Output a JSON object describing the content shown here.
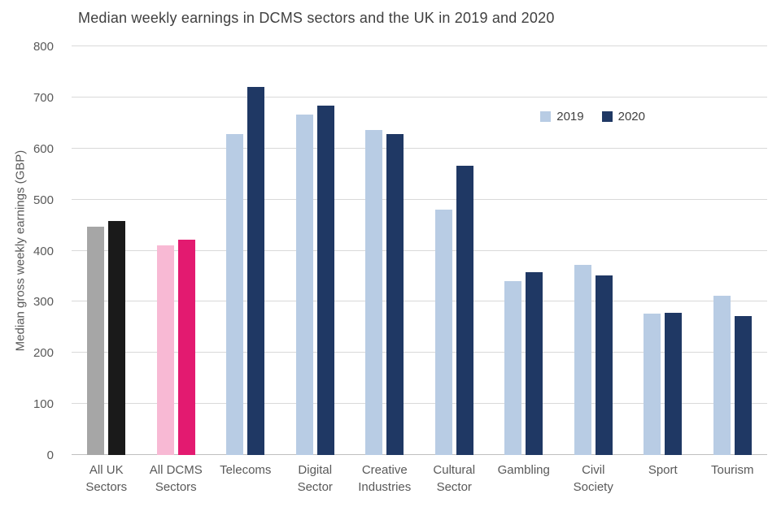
{
  "chart_data": {
    "type": "bar",
    "title": "Median weekly earnings in DCMS sectors and the UK in 2019 and 2020",
    "xlabel": "",
    "ylabel": "Median gross weekly earnings (GBP)",
    "ylim": [
      0,
      800
    ],
    "yticks": [
      0,
      100,
      200,
      300,
      400,
      500,
      600,
      700,
      800
    ],
    "grid": true,
    "legend_position": "top-right-inside",
    "categories": [
      "All UK\nSectors",
      "All DCMS\nSectors",
      "Telecoms",
      "Digital\nSector",
      "Creative\nIndustries",
      "Cultural\nSector",
      "Gambling",
      "Civil\nSociety",
      "Sport",
      "Tourism"
    ],
    "series": [
      {
        "name": "2019",
        "color": "#b8cce4",
        "values": [
          447,
          411,
          628,
          666,
          637,
          481,
          340,
          372,
          276,
          311
        ],
        "bar_colors": [
          "#a6a6a6",
          "#f8b9d4",
          "#b8cce4",
          "#b8cce4",
          "#b8cce4",
          "#b8cce4",
          "#b8cce4",
          "#b8cce4",
          "#b8cce4",
          "#b8cce4"
        ]
      },
      {
        "name": "2020",
        "color": "#1f3864",
        "values": [
          458,
          421,
          721,
          684,
          628,
          567,
          358,
          351,
          278,
          272
        ],
        "bar_colors": [
          "#1a1a1a",
          "#e31a70",
          "#1f3864",
          "#1f3864",
          "#1f3864",
          "#1f3864",
          "#1f3864",
          "#1f3864",
          "#1f3864",
          "#1f3864"
        ]
      }
    ]
  }
}
